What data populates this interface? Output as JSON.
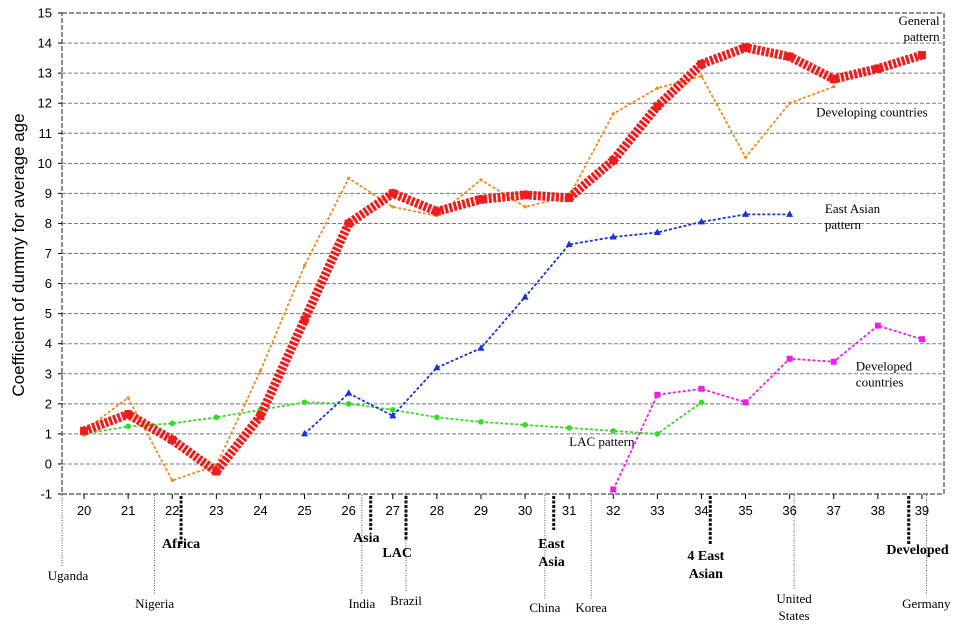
{
  "chart_data": {
    "type": "line",
    "title": "",
    "xlabel": "",
    "ylabel": "Coefficient of dummy for average age",
    "xlim": [
      19.5,
      39.5
    ],
    "ylim": [
      -1,
      15
    ],
    "x_ticks": [
      20,
      21,
      22,
      23,
      24,
      25,
      26,
      27,
      28,
      29,
      30,
      31,
      32,
      33,
      34,
      35,
      36,
      37,
      38,
      39
    ],
    "y_ticks": [
      -1,
      0,
      1,
      2,
      3,
      4,
      5,
      6,
      7,
      8,
      9,
      10,
      11,
      12,
      13,
      14,
      15
    ],
    "grid": true,
    "series": [
      {
        "name": "General pattern",
        "color": "#ee1c1c",
        "style": "thick-dashed",
        "x": [
          20,
          21,
          22,
          23,
          24,
          25,
          26,
          27,
          28,
          29,
          30,
          31,
          32,
          33,
          34,
          35,
          36,
          37,
          38,
          39
        ],
        "y": [
          1.1,
          1.65,
          0.8,
          -0.25,
          1.6,
          4.8,
          8.0,
          9.0,
          8.4,
          8.8,
          8.95,
          8.85,
          10.1,
          11.9,
          13.3,
          13.85,
          13.55,
          12.8,
          13.15,
          13.6
        ]
      },
      {
        "name": "Developing countries",
        "color": "#f08a1c",
        "style": "dotted",
        "x": [
          20,
          21,
          22,
          23,
          24,
          25,
          26,
          27,
          28,
          29,
          30,
          31,
          32,
          33,
          34,
          35,
          36,
          37
        ],
        "y": [
          1.1,
          2.2,
          -0.55,
          -0.05,
          3.1,
          6.6,
          9.5,
          8.55,
          8.25,
          9.45,
          8.55,
          8.9,
          11.65,
          12.5,
          12.9,
          10.2,
          12.0,
          12.55
        ]
      },
      {
        "name": "East Asian pattern",
        "color": "#1633d6",
        "style": "dotted",
        "x": [
          25,
          26,
          27,
          28,
          29,
          30,
          31,
          32,
          33,
          34,
          35,
          36
        ],
        "y": [
          1.0,
          2.35,
          1.6,
          3.2,
          3.85,
          5.55,
          7.3,
          7.55,
          7.7,
          8.05,
          8.3,
          8.3
        ]
      },
      {
        "name": "Developed countries",
        "color": "#ee1cee",
        "style": "dotted",
        "x": [
          32,
          33,
          34,
          35,
          36,
          37,
          38,
          39
        ],
        "y": [
          -0.85,
          2.3,
          2.5,
          2.05,
          3.5,
          3.4,
          4.6,
          4.15
        ]
      },
      {
        "name": "LAC pattern",
        "color": "#33dd22",
        "style": "dotted",
        "x": [
          20,
          21,
          22,
          23,
          24,
          25,
          26,
          27,
          28,
          29,
          30,
          31,
          32,
          33,
          34
        ],
        "y": [
          1.0,
          1.25,
          1.35,
          1.55,
          1.8,
          2.05,
          2.0,
          1.8,
          1.55,
          1.4,
          1.3,
          1.2,
          1.1,
          1.0,
          2.05
        ]
      }
    ],
    "line_labels": [
      {
        "lines": [
          "General",
          "pattern"
        ],
        "x": 38.5,
        "y": 14.6
      },
      {
        "lines": [
          "Developing countries"
        ],
        "x": 36.6,
        "y": 11.55
      },
      {
        "lines": [
          "East Asian",
          "pattern"
        ],
        "x": 36.8,
        "y": 8.35
      },
      {
        "lines": [
          "Developed",
          "countries"
        ],
        "x": 37.5,
        "y": 3.1
      },
      {
        "lines": [
          "LAC pattern"
        ],
        "x": 31.0,
        "y": 0.6
      }
    ],
    "regions": [
      {
        "lines": [
          "Africa"
        ],
        "x": 22.2,
        "y": -2.8,
        "divider_x": 22.2
      },
      {
        "lines": [
          "Asia"
        ],
        "x": 26.4,
        "y": -2.6,
        "divider_x": 26.5
      },
      {
        "lines": [
          "LAC"
        ],
        "x": 27.1,
        "y": -3.1,
        "divider_x": 27.3
      },
      {
        "lines": [
          "East",
          "Asia"
        ],
        "x": 30.6,
        "y": -2.8,
        "divider_x": 30.65
      },
      {
        "lines": [
          "4 East",
          "Asian"
        ],
        "x": 34.1,
        "y": -3.2,
        "divider_x": 34.2
      },
      {
        "lines": [
          "Developed"
        ],
        "x": 38.9,
        "y": -3.0,
        "divider_x": 38.7
      }
    ],
    "countries": [
      {
        "name": [
          "Uganda"
        ],
        "x": 19.5
      },
      {
        "name": [
          "Nigeria"
        ],
        "x": 21.6
      },
      {
        "name": [
          "India"
        ],
        "x": 26.3
      },
      {
        "name": [
          "Brazil"
        ],
        "x": 27.3
      },
      {
        "name": [
          "China"
        ],
        "x": 30.45
      },
      {
        "name": [
          "Korea"
        ],
        "x": 31.5
      },
      {
        "name": [
          "United",
          "States"
        ],
        "x": 36.1
      },
      {
        "name": [
          "Germany"
        ],
        "x": 39.1
      }
    ]
  }
}
